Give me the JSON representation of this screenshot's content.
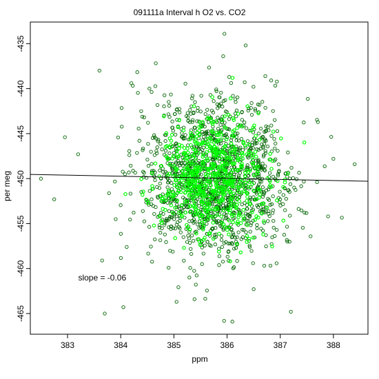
{
  "chart_data": {
    "type": "scatter",
    "title": "091111a   Interval h O2 vs. CO2",
    "xlabel": "ppm",
    "ylabel": "per meg",
    "xlim": [
      382.3,
      388.65
    ],
    "ylim": [
      -467.3,
      -432.6
    ],
    "x_ticks": [
      383,
      384,
      385,
      386,
      387,
      388
    ],
    "y_ticks": [
      -435,
      -440,
      -445,
      -450,
      -455,
      -460,
      -465
    ],
    "annotation": {
      "text": "slope =  -0.06",
      "x": 383.2,
      "y": -461
    },
    "grid": false,
    "legend": "none",
    "regression": {
      "slope": -0.06,
      "intercept_at_385_75": -449.95,
      "color": "#000000"
    },
    "cloud": {
      "center": [
        385.75,
        -450
      ],
      "sd": [
        0.7,
        4.2
      ],
      "n_dark": 1400,
      "n_bright": 650,
      "seed": 91111
    },
    "points": [
      {
        "x": 382.5,
        "y": -450
      },
      {
        "x": 382.75,
        "y": -452.3
      },
      {
        "x": 382.95,
        "y": -445.4
      },
      {
        "x": 383.2,
        "y": -447.3
      },
      {
        "x": 383.6,
        "y": -438
      },
      {
        "x": 383.7,
        "y": -465
      },
      {
        "x": 384.2,
        "y": -439.4
      },
      {
        "x": 385.95,
        "y": -433.9
      },
      {
        "x": 386.35,
        "y": -435.2
      },
      {
        "x": 386.1,
        "y": -465.9
      },
      {
        "x": 387.2,
        "y": -464.8
      },
      {
        "x": 388.4,
        "y": -448.4
      },
      {
        "x": 388.0,
        "y": -447.8
      },
      {
        "x": 387.9,
        "y": -454.2
      },
      {
        "x": 384.05,
        "y": -464.3
      },
      {
        "x": 385.05,
        "y": -463.7
      },
      {
        "x": 386.5,
        "y": -462.3
      },
      {
        "x": 383.65,
        "y": -459.1
      }
    ],
    "colors": {
      "dark": "#006400",
      "bright": "#00ff00",
      "axis": "#000000"
    }
  }
}
